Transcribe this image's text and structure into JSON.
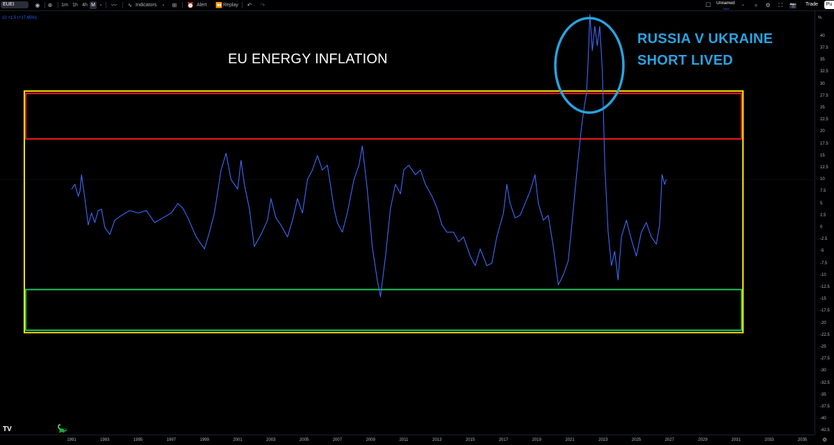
{
  "toolbar": {
    "symbol": "EUEI",
    "timeframes": [
      "1m",
      "1h",
      "4h",
      "M"
    ],
    "indicators_label": "Indicators",
    "alert_label": "Alert",
    "replay_label": "Replay",
    "layout_name": "Unnamed",
    "layout_status": "Save",
    "trade_label": "Trade",
    "publish_label": "Pu"
  },
  "legend": {
    "value": "10",
    "change": "+1.5 (+17.65%)"
  },
  "annotations": {
    "title": "EU ENERGY INFLATION",
    "callout_line1": "RUSSIA V UKRAINE",
    "callout_line2": "SHORT LIVED",
    "callout_color": "#29a3e0",
    "zones": [
      {
        "name": "upper-zone",
        "color": "#ff1a1a",
        "y_top": 28,
        "y_bottom": 18.5
      },
      {
        "name": "lower-zone",
        "color": "#22c55e",
        "y_top": -13,
        "y_bottom": -21.5
      },
      {
        "name": "outer-range",
        "color": "#f7e600",
        "y_top": 28.5,
        "y_bottom": -22
      }
    ]
  },
  "chart_data": {
    "type": "line",
    "title": "EU ENERGY INFLATION",
    "series": [
      {
        "color": "#3d6bff",
        "points": [
          [
            1991.0,
            8.0
          ],
          [
            1991.2,
            9.0
          ],
          [
            1991.4,
            6.5
          ],
          [
            1991.5,
            7.5
          ],
          [
            1991.6,
            11.0
          ],
          [
            1991.8,
            6.0
          ],
          [
            1992.0,
            0.5
          ],
          [
            1992.2,
            3.0
          ],
          [
            1992.4,
            1.0
          ],
          [
            1992.6,
            3.5
          ],
          [
            1992.8,
            3.8
          ],
          [
            1993.0,
            0.0
          ],
          [
            1993.3,
            -1.5
          ],
          [
            1993.6,
            1.5
          ],
          [
            1994.0,
            2.5
          ],
          [
            1994.5,
            3.5
          ],
          [
            1995.0,
            3.0
          ],
          [
            1995.5,
            3.5
          ],
          [
            1996.0,
            1.0
          ],
          [
            1996.5,
            2.0
          ],
          [
            1997.0,
            3.0
          ],
          [
            1997.4,
            5.0
          ],
          [
            1997.7,
            4.0
          ],
          [
            1998.0,
            2.0
          ],
          [
            1998.5,
            -2.0
          ],
          [
            1999.0,
            -4.5
          ],
          [
            1999.3,
            -1.0
          ],
          [
            1999.6,
            3.0
          ],
          [
            2000.0,
            12.0
          ],
          [
            2000.3,
            15.5
          ],
          [
            2000.6,
            10.0
          ],
          [
            2001.0,
            8.0
          ],
          [
            2001.2,
            14.0
          ],
          [
            2001.4,
            9.0
          ],
          [
            2001.7,
            4.0
          ],
          [
            2002.0,
            -4.0
          ],
          [
            2002.4,
            -1.5
          ],
          [
            2002.8,
            1.5
          ],
          [
            2003.0,
            6.0
          ],
          [
            2003.3,
            2.0
          ],
          [
            2003.6,
            0.5
          ],
          [
            2004.0,
            -2.0
          ],
          [
            2004.3,
            1.5
          ],
          [
            2004.6,
            6.0
          ],
          [
            2004.9,
            3.0
          ],
          [
            2005.2,
            10.0
          ],
          [
            2005.5,
            12.0
          ],
          [
            2005.8,
            15.0
          ],
          [
            2006.1,
            12.0
          ],
          [
            2006.4,
            13.0
          ],
          [
            2006.8,
            4.0
          ],
          [
            2007.0,
            1.0
          ],
          [
            2007.3,
            -1.0
          ],
          [
            2007.6,
            3.0
          ],
          [
            2008.0,
            10.0
          ],
          [
            2008.3,
            13.0
          ],
          [
            2008.5,
            17.0
          ],
          [
            2008.8,
            8.0
          ],
          [
            2009.1,
            -4.0
          ],
          [
            2009.4,
            -11.0
          ],
          [
            2009.6,
            -14.5
          ],
          [
            2009.9,
            -6.0
          ],
          [
            2010.2,
            4.0
          ],
          [
            2010.5,
            9.0
          ],
          [
            2010.8,
            7.0
          ],
          [
            2011.0,
            12.0
          ],
          [
            2011.3,
            13.0
          ],
          [
            2011.7,
            11.0
          ],
          [
            2012.0,
            12.0
          ],
          [
            2012.3,
            9.0
          ],
          [
            2012.7,
            6.5
          ],
          [
            2013.0,
            4.0
          ],
          [
            2013.3,
            0.5
          ],
          [
            2013.6,
            -1.0
          ],
          [
            2014.0,
            -1.0
          ],
          [
            2014.3,
            -3.0
          ],
          [
            2014.6,
            -2.0
          ],
          [
            2015.0,
            -6.0
          ],
          [
            2015.3,
            -8.0
          ],
          [
            2015.6,
            -4.5
          ],
          [
            2016.0,
            -8.0
          ],
          [
            2016.3,
            -7.5
          ],
          [
            2016.6,
            -2.0
          ],
          [
            2017.0,
            3.0
          ],
          [
            2017.2,
            9.0
          ],
          [
            2017.4,
            5.0
          ],
          [
            2017.7,
            2.0
          ],
          [
            2018.0,
            2.5
          ],
          [
            2018.3,
            5.0
          ],
          [
            2018.6,
            7.5
          ],
          [
            2018.9,
            11.0
          ],
          [
            2019.1,
            5.0
          ],
          [
            2019.4,
            1.5
          ],
          [
            2019.7,
            2.5
          ],
          [
            2020.0,
            -4.0
          ],
          [
            2020.3,
            -12.0
          ],
          [
            2020.6,
            -10.0
          ],
          [
            2020.9,
            -7.0
          ],
          [
            2021.1,
            0.0
          ],
          [
            2021.4,
            11.0
          ],
          [
            2021.7,
            21.0
          ],
          [
            2021.9,
            26.0
          ],
          [
            2022.0,
            28.0
          ],
          [
            2022.1,
            35.0
          ],
          [
            2022.2,
            44.5
          ],
          [
            2022.35,
            37.0
          ],
          [
            2022.5,
            42.0
          ],
          [
            2022.65,
            38.0
          ],
          [
            2022.8,
            42.0
          ],
          [
            2022.95,
            33.0
          ],
          [
            2023.1,
            13.0
          ],
          [
            2023.3,
            -1.0
          ],
          [
            2023.5,
            -8.0
          ],
          [
            2023.7,
            -5.0
          ],
          [
            2023.9,
            -11.0
          ],
          [
            2024.1,
            -2.0
          ],
          [
            2024.4,
            1.5
          ],
          [
            2024.7,
            -2.5
          ],
          [
            2025.0,
            -6.0
          ],
          [
            2025.3,
            -1.0
          ],
          [
            2025.6,
            1.0
          ],
          [
            2025.9,
            -2.0
          ],
          [
            2026.2,
            -3.5
          ],
          [
            2026.4,
            0.5
          ],
          [
            2026.55,
            11.0
          ],
          [
            2026.7,
            9.0
          ],
          [
            2026.8,
            10.0
          ]
        ]
      }
    ],
    "xlim": [
      1990.0,
      2036.5
    ],
    "ylim": [
      -43,
      45
    ],
    "y_ticks": [
      40,
      37.5,
      35,
      32.5,
      30,
      27.5,
      25,
      22.5,
      20,
      17.5,
      15,
      12.5,
      10,
      7.5,
      5,
      2.5,
      0,
      -2.5,
      -5,
      -7.5,
      -10,
      -12.5,
      -15,
      -17.5,
      -20,
      -22.5,
      -25,
      -27.5,
      -30,
      -32.5,
      -35,
      -37.5,
      -40,
      -42.5
    ],
    "x_ticks": [
      "1991",
      "1993",
      "1995",
      "1997",
      "1999",
      "2001",
      "2003",
      "2005",
      "2007",
      "2009",
      "2011",
      "2013",
      "2015",
      "2017",
      "2019",
      "2021",
      "2023",
      "2025",
      "2027",
      "2029",
      "2031",
      "2033",
      "2035"
    ],
    "y_unit": "%",
    "grid": false
  }
}
